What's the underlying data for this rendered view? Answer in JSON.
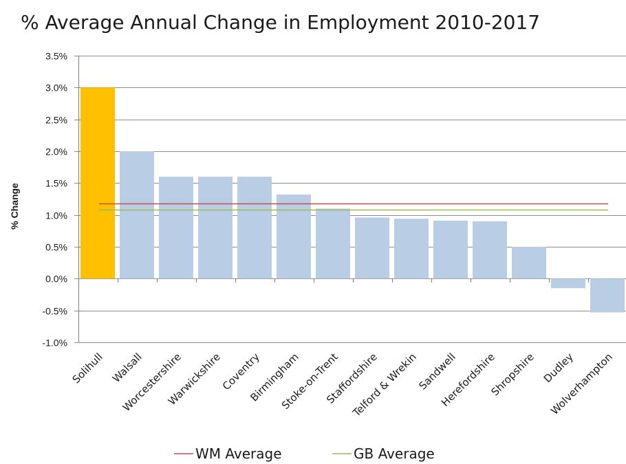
{
  "chart_data": {
    "type": "bar",
    "title": "% Average Annual Change in Employment 2010-2017",
    "ylabel": "% Change",
    "xlabel": "",
    "ylim": [
      -1.0,
      3.5
    ],
    "yticks": [
      3.5,
      3.0,
      2.5,
      2.0,
      1.5,
      1.0,
      0.5,
      0.0,
      -0.5,
      -1.0
    ],
    "ytick_labels": [
      "3.5%",
      "3.0%",
      "2.5%",
      "2.0%",
      "1.5%",
      "1.0%",
      "0.5%",
      "0.0%",
      "-0.5%",
      "-1.0%"
    ],
    "grid": true,
    "categories": [
      "Solihull",
      "Walsall",
      "Worcestershire",
      "Warwickshire",
      "Coventry",
      "Birmingham",
      "Stoke-on-Trent",
      "Staffordshire",
      "Telford & Wrekin",
      "Sandwell",
      "Herefordshire",
      "Shropshire",
      "Dudley",
      "Wolverhampton"
    ],
    "values": [
      3.0,
      2.0,
      1.6,
      1.6,
      1.6,
      1.32,
      1.1,
      0.96,
      0.94,
      0.91,
      0.9,
      0.5,
      -0.15,
      -0.53
    ],
    "bar_colors": [
      "#ffc000",
      "#b9cde5",
      "#b9cde5",
      "#b9cde5",
      "#b9cde5",
      "#b9cde5",
      "#b9cde5",
      "#b9cde5",
      "#b9cde5",
      "#b9cde5",
      "#b9cde5",
      "#b9cde5",
      "#b9cde5",
      "#b9cde5"
    ],
    "reference_lines": [
      {
        "name": "WM Average",
        "value": 1.18,
        "color": "#c0504d"
      },
      {
        "name": "GB Average",
        "value": 1.08,
        "color": "#9bbb59"
      }
    ],
    "legend_position": "bottom"
  }
}
